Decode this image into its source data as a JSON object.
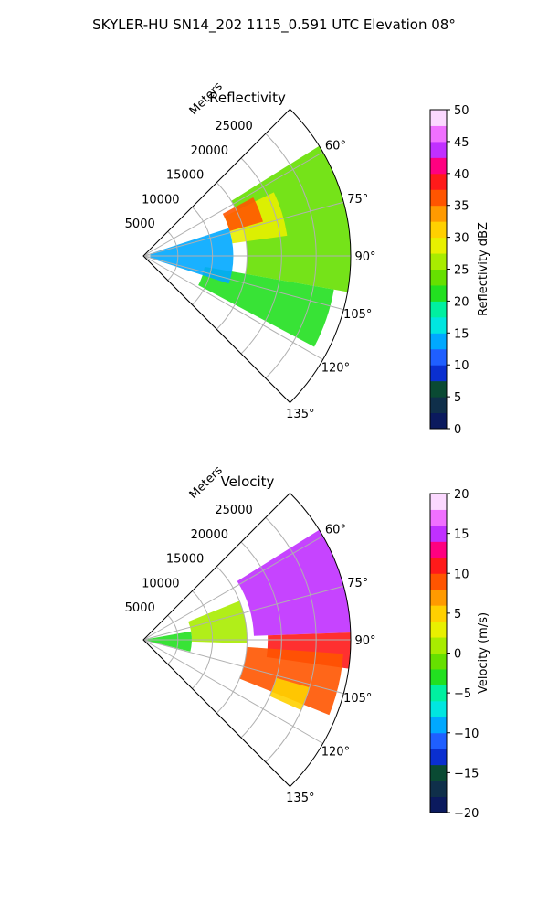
{
  "figure": {
    "title": "SKYLER-HU  SN14_202  1115_0.591 UTC Elevation 08°"
  },
  "chart_data": [
    {
      "type": "polar-sector",
      "title": "Reflectivity",
      "radial_label": "Meters",
      "radial_ticks": [
        5000,
        10000,
        15000,
        20000,
        25000
      ],
      "radial_tick_labels": [
        "5000",
        "10000",
        "15000",
        "20000",
        "25000"
      ],
      "angle_ticks": [
        60,
        75,
        90,
        105,
        120,
        135
      ],
      "angle_tick_labels": [
        "60°",
        "75°",
        "90°",
        "105°",
        "120°",
        "135°"
      ],
      "angle_range_deg": [
        45,
        135
      ],
      "radius_max": 30000,
      "grid": true,
      "colorbar": {
        "label": "Reflectivity dBZ",
        "range": [
          0,
          50
        ],
        "ticks": [
          0,
          5,
          10,
          15,
          20,
          25,
          30,
          35,
          40,
          45,
          50
        ],
        "tick_labels": [
          "0",
          "5",
          "10",
          "15",
          "20",
          "25",
          "30",
          "35",
          "40",
          "45",
          "50"
        ],
        "colors": [
          "#0b1a5e",
          "#0f2f4a",
          "#0a4a33",
          "#0a2fd0",
          "#1f5fff",
          "#00a8ff",
          "#00e6e0",
          "#00f0a0",
          "#22e020",
          "#66e000",
          "#a8ec00",
          "#e8f000",
          "#ffd000",
          "#ff9a00",
          "#ff5500",
          "#ff1a1a",
          "#ff0080",
          "#c030ff",
          "#f070ff",
          "#fbd8ff"
        ]
      },
      "regions": [
        {
          "az": [
            58,
            100
          ],
          "r": [
            15000,
            30000
          ],
          "value": 24
        },
        {
          "az": [
            100,
            118
          ],
          "r": [
            9000,
            28000
          ],
          "value": 21
        },
        {
          "az": [
            64,
            82
          ],
          "r": [
            13000,
            21000
          ],
          "value": 29
        },
        {
          "az": [
            62,
            74
          ],
          "r": [
            13000,
            18000
          ],
          "value": 35
        },
        {
          "az": [
            72,
            108
          ],
          "r": [
            1000,
            13000
          ],
          "value": 14
        }
      ]
    },
    {
      "type": "polar-sector",
      "title": "Velocity",
      "radial_label": "Meters",
      "radial_ticks": [
        5000,
        10000,
        15000,
        20000,
        25000
      ],
      "radial_tick_labels": [
        "5000",
        "10000",
        "15000",
        "20000",
        "25000"
      ],
      "angle_ticks": [
        60,
        75,
        90,
        105,
        120,
        135
      ],
      "angle_tick_labels": [
        "60°",
        "75°",
        "90°",
        "105°",
        "120°",
        "135°"
      ],
      "angle_range_deg": [
        45,
        135
      ],
      "radius_max": 30000,
      "grid": true,
      "colorbar": {
        "label": "Velocity (m/s)",
        "range": [
          -20,
          20
        ],
        "ticks": [
          -20,
          -15,
          -10,
          -5,
          0,
          5,
          10,
          15,
          20
        ],
        "tick_labels": [
          "−20",
          "−15",
          "−10",
          "−5",
          "0",
          "5",
          "10",
          "15",
          "20"
        ],
        "colors": [
          "#0b1a5e",
          "#0f2f4a",
          "#0a4a33",
          "#0a2fd0",
          "#1f5fff",
          "#00a8ff",
          "#00e6e0",
          "#00f0a0",
          "#22e020",
          "#66e000",
          "#a8ec00",
          "#e8f000",
          "#ffd000",
          "#ff9a00",
          "#ff5500",
          "#ff1a1a",
          "#ff0080",
          "#c030ff",
          "#f070ff",
          "#fbd8ff"
        ]
      },
      "regions": [
        {
          "az": [
            58,
            88
          ],
          "r": [
            16000,
            30000
          ],
          "value": 15
        },
        {
          "az": [
            88,
            98
          ],
          "r": [
            18000,
            30000
          ],
          "value": 11
        },
        {
          "az": [
            94,
            112
          ],
          "r": [
            15000,
            29000
          ],
          "value": 8
        },
        {
          "az": [
            68,
            92
          ],
          "r": [
            7000,
            15000
          ],
          "value": 1
        },
        {
          "az": [
            80,
            104
          ],
          "r": [
            0,
            7000
          ],
          "value": -4
        },
        {
          "az": [
            106,
            114
          ],
          "r": [
            20000,
            25000
          ],
          "value": 5
        }
      ]
    }
  ]
}
